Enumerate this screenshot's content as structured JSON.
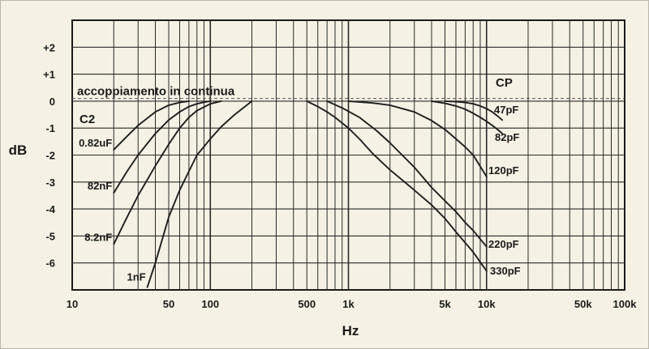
{
  "chart_data": {
    "type": "line",
    "xlabel": "Hz",
    "ylabel": "dB",
    "x_scale": "log",
    "xlim": [
      10,
      100000
    ],
    "ylim": [
      -7,
      3
    ],
    "grid": true,
    "x_tick_labels": [
      {
        "value": 10,
        "label": "10"
      },
      {
        "value": 50,
        "label": "50"
      },
      {
        "value": 100,
        "label": "100"
      },
      {
        "value": 500,
        "label": "500"
      },
      {
        "value": 1000,
        "label": "1k"
      },
      {
        "value": 5000,
        "label": "5k"
      },
      {
        "value": 10000,
        "label": "10k"
      },
      {
        "value": 50000,
        "label": "50k"
      },
      {
        "value": 100000,
        "label": "100k"
      }
    ],
    "y_tick_labels": [
      {
        "value": 2,
        "label": "+2"
      },
      {
        "value": 1,
        "label": "+1"
      },
      {
        "value": 0,
        "label": "0"
      },
      {
        "value": -1,
        "label": "-1"
      },
      {
        "value": -2,
        "label": "-2"
      },
      {
        "value": -3,
        "label": "-3"
      },
      {
        "value": -4,
        "label": "-4"
      },
      {
        "value": -5,
        "label": "-5"
      },
      {
        "value": -6,
        "label": "-6"
      }
    ],
    "reference_line": {
      "label": "accoppiamento in continua",
      "y": 0.1
    },
    "group_labels": [
      "C2",
      "CP"
    ],
    "series": [
      {
        "name": "0.82uF",
        "group": "C2",
        "x": [
          20,
          25,
          30,
          40,
          50,
          60,
          70
        ],
        "y": [
          -1.8,
          -1.3,
          -0.9,
          -0.4,
          -0.15,
          -0.05,
          0
        ]
      },
      {
        "name": "82nF",
        "group": "C2",
        "x": [
          20,
          25,
          30,
          40,
          50,
          60,
          70,
          80,
          90,
          100
        ],
        "y": [
          -3.4,
          -2.6,
          -2.0,
          -1.2,
          -0.7,
          -0.4,
          -0.2,
          -0.1,
          -0.04,
          0
        ]
      },
      {
        "name": "8.2nF",
        "group": "C2",
        "x": [
          20,
          25,
          30,
          40,
          50,
          60,
          70,
          80,
          100,
          120
        ],
        "y": [
          -5.3,
          -4.3,
          -3.5,
          -2.4,
          -1.6,
          -1.0,
          -0.6,
          -0.35,
          -0.1,
          0
        ]
      },
      {
        "name": "1nF",
        "group": "C2",
        "x": [
          35,
          40,
          50,
          60,
          70,
          80,
          100,
          120,
          150,
          200
        ],
        "y": [
          -6.9,
          -6.0,
          -4.3,
          -3.3,
          -2.6,
          -2.0,
          -1.4,
          -0.95,
          -0.5,
          0
        ]
      },
      {
        "name": "47pF",
        "group": "CP",
        "x": [
          5000,
          6000,
          7000,
          8000,
          9000,
          10000,
          11000,
          12000,
          13000
        ],
        "y": [
          0,
          -0.02,
          -0.05,
          -0.1,
          -0.18,
          -0.28,
          -0.4,
          -0.55,
          -0.7
        ]
      },
      {
        "name": "82pF",
        "group": "CP",
        "x": [
          4000,
          5000,
          6000,
          7000,
          8000,
          9000,
          10000,
          11000,
          12000,
          13000
        ],
        "y": [
          0,
          -0.08,
          -0.18,
          -0.3,
          -0.45,
          -0.6,
          -0.75,
          -0.9,
          -1.05,
          -1.2
        ]
      },
      {
        "name": "120pF",
        "group": "CP",
        "x": [
          1000,
          1500,
          2000,
          3000,
          4000,
          5000,
          6000,
          7000,
          8000,
          10000
        ],
        "y": [
          0,
          -0.07,
          -0.15,
          -0.4,
          -0.72,
          -1.05,
          -1.4,
          -1.7,
          -2.0,
          -2.8
        ]
      },
      {
        "name": "220pF",
        "group": "CP",
        "x": [
          700,
          900,
          1200,
          1600,
          2000,
          3000,
          4000,
          5000,
          6000,
          7000,
          8000,
          10000
        ],
        "y": [
          0,
          -0.25,
          -0.6,
          -1.1,
          -1.55,
          -2.45,
          -3.2,
          -3.7,
          -4.1,
          -4.5,
          -4.8,
          -5.4
        ]
      },
      {
        "name": "330pF",
        "group": "CP",
        "x": [
          500,
          600,
          700,
          800,
          1000,
          1200,
          1500,
          2000,
          3000,
          4000,
          5000,
          6000,
          7000,
          8000,
          10000
        ],
        "y": [
          0,
          -0.2,
          -0.4,
          -0.6,
          -1.0,
          -1.4,
          -1.95,
          -2.55,
          -3.3,
          -3.85,
          -4.35,
          -4.85,
          -5.25,
          -5.6,
          -6.3
        ]
      }
    ]
  }
}
